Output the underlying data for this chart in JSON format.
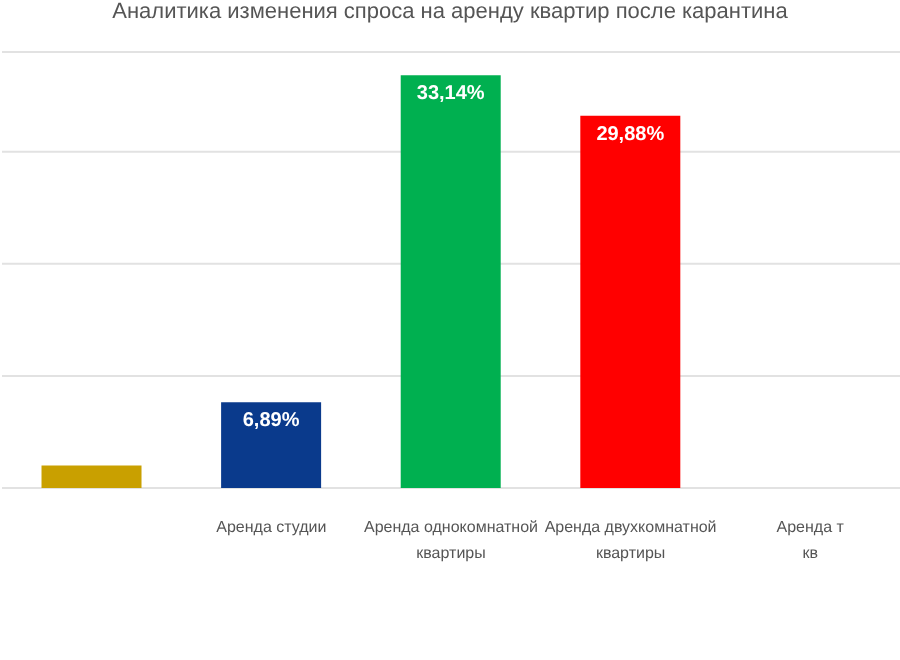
{
  "chart_data": {
    "type": "bar",
    "title": "Аналитика изменения спроса на аренду квартир после карантина",
    "categories": [
      null,
      "Аренда студии",
      "Аренда однокомнатной\nквартиры",
      "Аренда двухкомнатной\nквартиры",
      "Аренда т\nкв"
    ],
    "values": [
      1.8,
      6.89,
      33.14,
      29.88,
      null
    ],
    "colors": [
      "#c9a000",
      "#0a3a8c",
      "#00b050",
      "#ff0000",
      "#999999"
    ],
    "value_labels": [
      null,
      "6,89%",
      "33,14%",
      "29,88%",
      null
    ],
    "ylim": [
      0,
      35
    ],
    "tick_labels": "x",
    "grid": "y",
    "legend": false
  }
}
